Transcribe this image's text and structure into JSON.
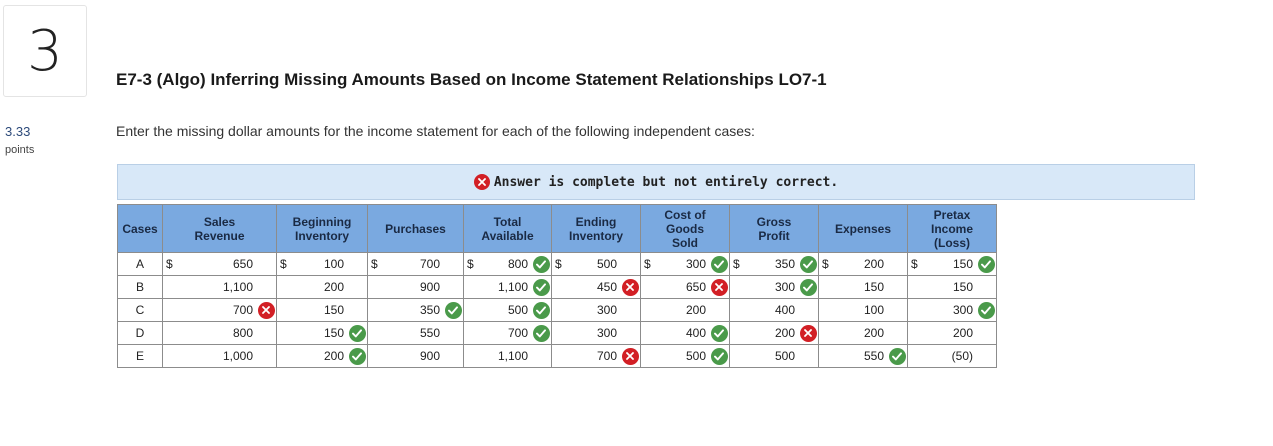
{
  "question": {
    "number": "3",
    "points_value": "3.33",
    "points_label": "points"
  },
  "title": "E7-3 (Algo) Inferring Missing Amounts Based on Income Statement Relationships LO7-1",
  "instructions": "Enter the missing dollar amounts for the income statement for each of the following independent cases:",
  "status": {
    "icon": "x-circle-icon",
    "text": "Answer is complete but not entirely correct."
  },
  "table": {
    "headers": {
      "cases": "Cases",
      "sales_revenue": [
        "Sales",
        "Revenue"
      ],
      "beginning_inventory": [
        "Beginning",
        "Inventory"
      ],
      "purchases": "Purchases",
      "total_available": [
        "Total",
        "Available"
      ],
      "ending_inventory": [
        "Ending",
        "Inventory"
      ],
      "cogs": [
        "Cost of",
        "Goods",
        "Sold"
      ],
      "gross_profit": [
        "Gross",
        "Profit"
      ],
      "expenses": "Expenses",
      "pretax_income": [
        "Pretax",
        "Income",
        "(Loss)"
      ]
    },
    "currency_symbol": "$",
    "rows": [
      {
        "case": "A",
        "sales_revenue": {
          "value": "650",
          "mark": ""
        },
        "beginning_inventory": {
          "value": "100",
          "mark": ""
        },
        "purchases": {
          "value": "700",
          "mark": ""
        },
        "total_available": {
          "value": "800",
          "mark": "correct"
        },
        "ending_inventory": {
          "value": "500",
          "mark": ""
        },
        "cogs": {
          "value": "300",
          "mark": "correct"
        },
        "gross_profit": {
          "value": "350",
          "mark": "correct"
        },
        "expenses": {
          "value": "200",
          "mark": ""
        },
        "pretax_income": {
          "value": "150",
          "mark": "correct"
        }
      },
      {
        "case": "B",
        "sales_revenue": {
          "value": "1,100",
          "mark": ""
        },
        "beginning_inventory": {
          "value": "200",
          "mark": ""
        },
        "purchases": {
          "value": "900",
          "mark": ""
        },
        "total_available": {
          "value": "1,100",
          "mark": "correct"
        },
        "ending_inventory": {
          "value": "450",
          "mark": "wrong"
        },
        "cogs": {
          "value": "650",
          "mark": "wrong"
        },
        "gross_profit": {
          "value": "300",
          "mark": "correct"
        },
        "expenses": {
          "value": "150",
          "mark": ""
        },
        "pretax_income": {
          "value": "150",
          "mark": ""
        }
      },
      {
        "case": "C",
        "sales_revenue": {
          "value": "700",
          "mark": "wrong"
        },
        "beginning_inventory": {
          "value": "150",
          "mark": ""
        },
        "purchases": {
          "value": "350",
          "mark": "correct"
        },
        "total_available": {
          "value": "500",
          "mark": "correct"
        },
        "ending_inventory": {
          "value": "300",
          "mark": ""
        },
        "cogs": {
          "value": "200",
          "mark": ""
        },
        "gross_profit": {
          "value": "400",
          "mark": ""
        },
        "expenses": {
          "value": "100",
          "mark": ""
        },
        "pretax_income": {
          "value": "300",
          "mark": "correct"
        }
      },
      {
        "case": "D",
        "sales_revenue": {
          "value": "800",
          "mark": ""
        },
        "beginning_inventory": {
          "value": "150",
          "mark": "correct"
        },
        "purchases": {
          "value": "550",
          "mark": ""
        },
        "total_available": {
          "value": "700",
          "mark": "correct"
        },
        "ending_inventory": {
          "value": "300",
          "mark": ""
        },
        "cogs": {
          "value": "400",
          "mark": "correct"
        },
        "gross_profit": {
          "value": "200",
          "mark": "wrong"
        },
        "expenses": {
          "value": "200",
          "mark": ""
        },
        "pretax_income": {
          "value": "200",
          "mark": ""
        }
      },
      {
        "case": "E",
        "sales_revenue": {
          "value": "1,000",
          "mark": ""
        },
        "beginning_inventory": {
          "value": "200",
          "mark": "correct"
        },
        "purchases": {
          "value": "900",
          "mark": ""
        },
        "total_available": {
          "value": "1,100",
          "mark": ""
        },
        "ending_inventory": {
          "value": "700",
          "mark": "wrong"
        },
        "cogs": {
          "value": "500",
          "mark": "correct"
        },
        "gross_profit": {
          "value": "500",
          "mark": ""
        },
        "expenses": {
          "value": "550",
          "mark": "correct"
        },
        "pretax_income": {
          "value": "(50)",
          "mark": ""
        }
      }
    ]
  },
  "colors": {
    "correct": "#4a9a4a",
    "wrong": "#d21f25",
    "header_bg": "#7aa9e0",
    "banner_bg": "#d8e8f8"
  }
}
